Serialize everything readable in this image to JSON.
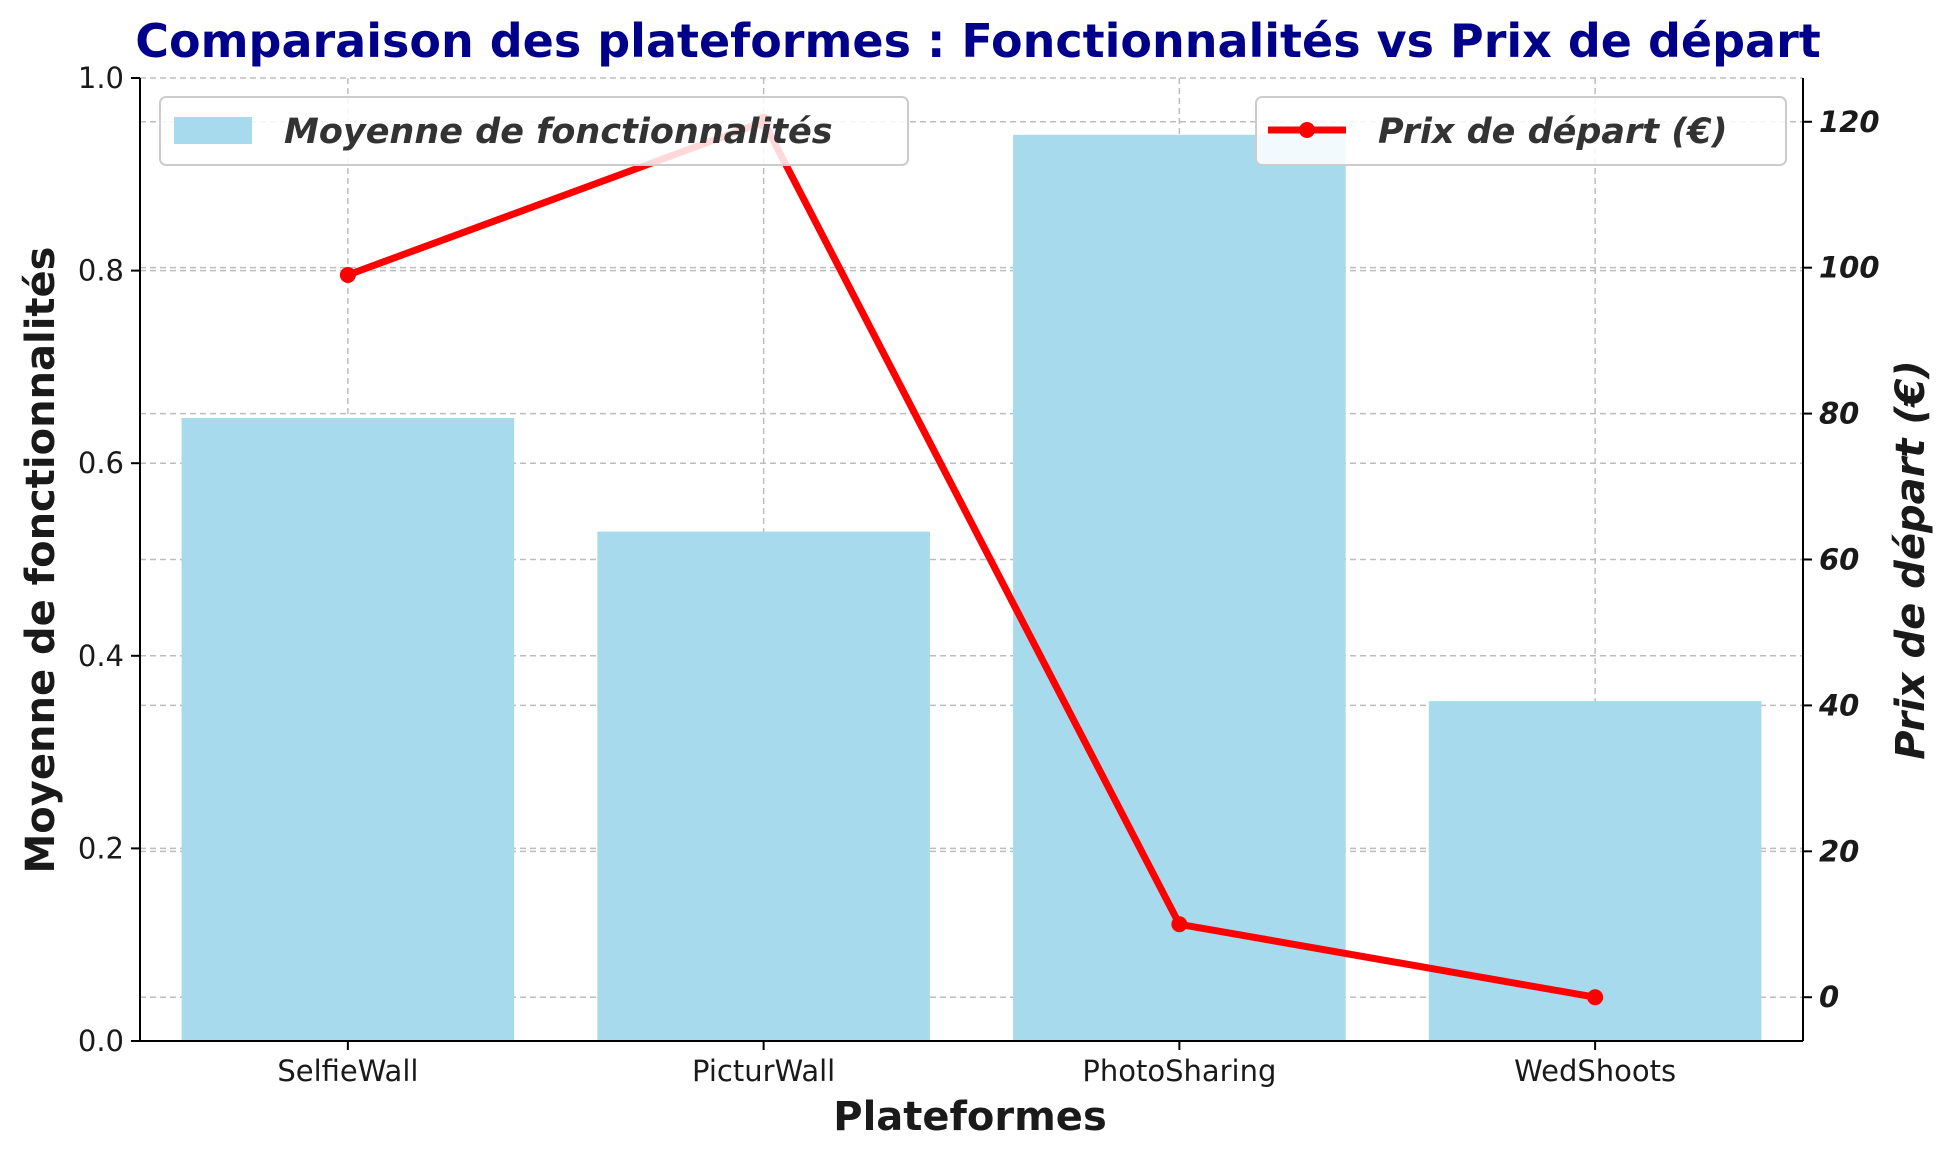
{
  "chart_data": {
    "type": "bar",
    "title": "Comparaison des plateformes : Fonctionnalités vs Prix de départ",
    "xlabel": "Plateformes",
    "ylabel": "Moyenne de fonctionnalités",
    "ylabel_right": "Prix de départ (€)",
    "categories": [
      "SelfieWall",
      "PicturWall",
      "PhotoSharing",
      "WedShoots"
    ],
    "ylim": [
      0,
      1.0
    ],
    "ylim_right": [
      -6,
      126
    ],
    "yticks": [
      "0.0",
      "0.2",
      "0.4",
      "0.6",
      "0.8",
      "1.0"
    ],
    "yticks_right": [
      "0",
      "20",
      "40",
      "60",
      "80",
      "100",
      "120"
    ],
    "grid": true,
    "series": [
      {
        "name": "Moyenne de fonctionnalités",
        "type": "bar",
        "axis": "left",
        "color": "#a8daed",
        "values": [
          0.647,
          0.529,
          0.941,
          0.353
        ]
      },
      {
        "name": "Prix de départ (€)",
        "type": "line",
        "axis": "right",
        "color": "#ff0000",
        "values": [
          99,
          120,
          10,
          0
        ]
      }
    ],
    "legend": {
      "bar_position": "top-left",
      "line_position": "top-right"
    },
    "title_color": "#00008b"
  }
}
